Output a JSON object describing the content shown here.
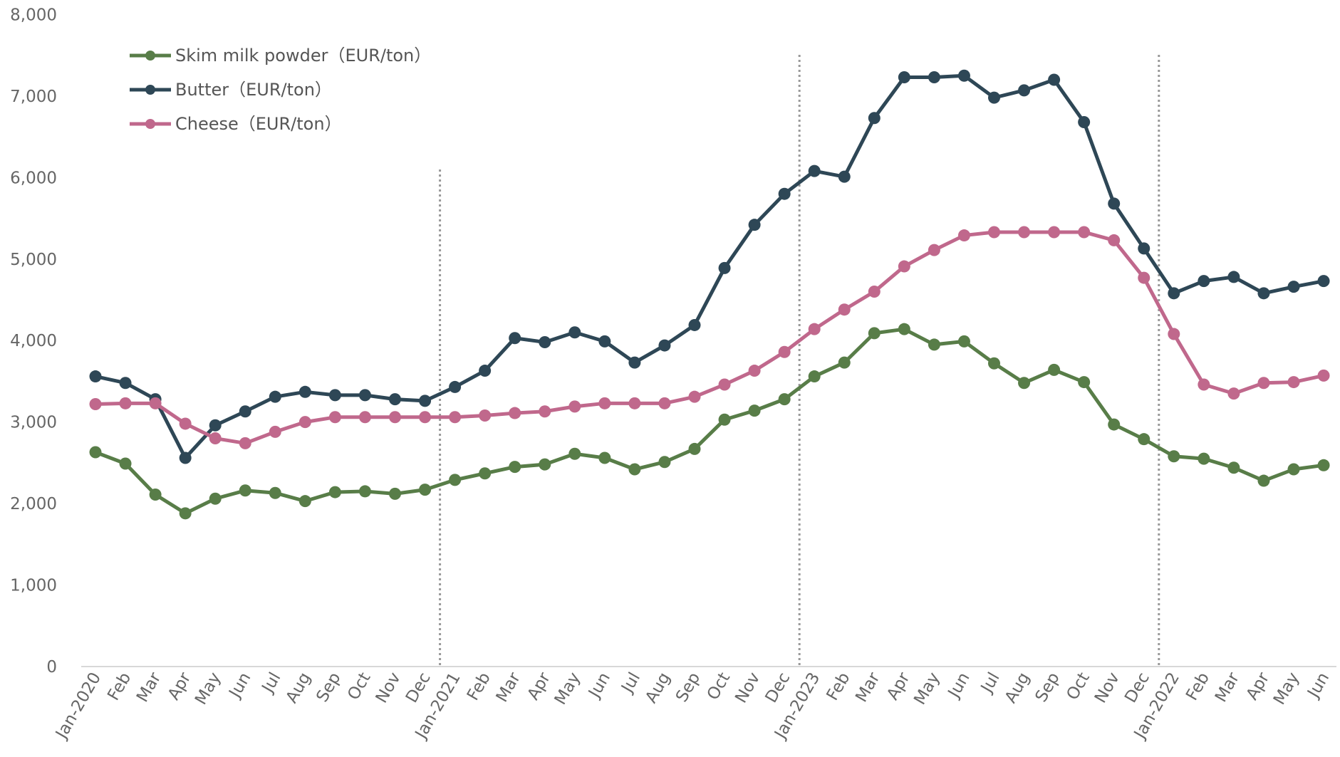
{
  "chart_data": {
    "type": "line",
    "categories": [
      "Jan-2020",
      "Feb",
      "Mar",
      "Apr",
      "May",
      "Jun",
      "Jul",
      "Aug",
      "Sep",
      "Oct",
      "Nov",
      "Dec",
      "Jan-2021",
      "Feb",
      "Mar",
      "Apr",
      "May",
      "Jun",
      "Jul",
      "Aug",
      "Sep",
      "Oct",
      "Nov",
      "Dec",
      "Jan-2023",
      "Feb",
      "Mar",
      "Apr",
      "May",
      "Jun",
      "Jul",
      "Aug",
      "Sep",
      "Oct",
      "Nov",
      "Dec",
      "Jan-2022",
      "Feb",
      "Mar",
      "Apr",
      "May",
      "Jun"
    ],
    "series": [
      {
        "name": "Skim milk powder（EUR/ton）",
        "color": "#587d48",
        "values": [
          2630,
          2490,
          2110,
          1880,
          2060,
          2160,
          2130,
          2030,
          2140,
          2150,
          2120,
          2170,
          2290,
          2370,
          2450,
          2480,
          2610,
          2560,
          2420,
          2510,
          2670,
          3030,
          3140,
          3280,
          3560,
          3730,
          4090,
          4140,
          3950,
          3990,
          3720,
          3480,
          3640,
          3490,
          2970,
          2790,
          2580,
          2550,
          2440,
          2280,
          2420,
          2470
        ]
      },
      {
        "name": "Butter（EUR/ton）",
        "color": "#2e4756",
        "values": [
          3560,
          3480,
          3280,
          2560,
          2960,
          3130,
          3310,
          3370,
          3330,
          3330,
          3280,
          3260,
          3430,
          3630,
          4030,
          3980,
          4100,
          3990,
          3730,
          3940,
          4190,
          4890,
          5420,
          5800,
          6080,
          6010,
          6730,
          7230,
          7230,
          7250,
          6980,
          7070,
          7200,
          6680,
          5680,
          5130,
          4580,
          4730,
          4780,
          4580,
          4660,
          4730
        ]
      },
      {
        "name": "Cheese（EUR/ton）",
        "color": "#c0688c",
        "values": [
          3220,
          3230,
          3230,
          2980,
          2800,
          2740,
          2880,
          3000,
          3060,
          3060,
          3060,
          3060,
          3060,
          3080,
          3110,
          3130,
          3190,
          3230,
          3230,
          3230,
          3310,
          3460,
          3630,
          3860,
          4140,
          4380,
          4600,
          4910,
          5110,
          5290,
          5330,
          5330,
          5330,
          5330,
          5230,
          4770,
          4080,
          3460,
          3350,
          3480,
          3490,
          3570
        ]
      }
    ],
    "ylim": [
      0,
      8000
    ],
    "yticks": [
      0,
      {
        "value": 1000,
        "label": "1,000"
      },
      {
        "value": 2000,
        "label": "2,000"
      },
      {
        "value": 3000,
        "label": "3,000"
      },
      {
        "value": 4000,
        "label": "4,000"
      },
      {
        "value": 5000,
        "label": "5,000"
      },
      {
        "value": 6000,
        "label": "6,000"
      },
      {
        "value": 7000,
        "label": "7,000"
      },
      {
        "value": 8000,
        "label": "8,000"
      }
    ]
  }
}
